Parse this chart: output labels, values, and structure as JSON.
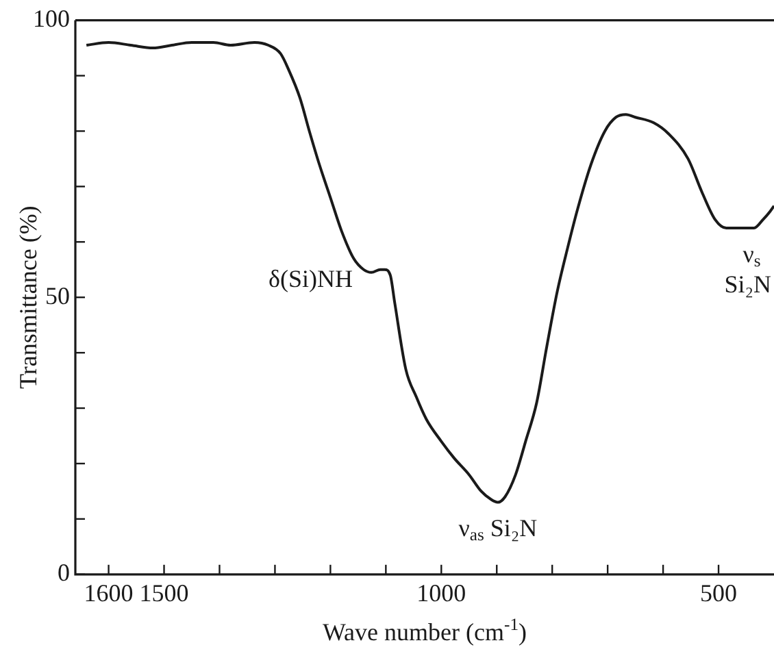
{
  "chart_data": {
    "type": "line",
    "xlabel": "Wave number (cm$^{-1}$)",
    "ylabel": "Transmittance (%)",
    "xlim": [
      1660,
      400
    ],
    "ylim": [
      0,
      100
    ],
    "xticks": [
      1600,
      1500,
      {
        "value": 1400,
        "label": null
      },
      {
        "value": 1300,
        "label": null
      },
      {
        "value": 1200,
        "label": null
      },
      {
        "value": 1100,
        "label": null
      },
      1000,
      {
        "value": 900,
        "label": null
      },
      {
        "value": 800,
        "label": null
      },
      {
        "value": 700,
        "label": null
      },
      {
        "value": 600,
        "label": null
      },
      500
    ],
    "yticks": [
      0,
      {
        "value": 10,
        "label": null
      },
      {
        "value": 20,
        "label": null
      },
      {
        "value": 30,
        "label": null
      },
      {
        "value": 40,
        "label": null
      },
      50,
      {
        "value": 60,
        "label": null
      },
      {
        "value": 70,
        "label": null
      },
      {
        "value": 80,
        "label": null
      },
      {
        "value": 90,
        "label": null
      },
      100
    ],
    "grid": false,
    "legend": false,
    "marker": "none",
    "line_style": "solid",
    "series": [
      {
        "color": "#1a1a1a",
        "x": [
          1640,
          1600,
          1560,
          1520,
          1486,
          1450,
          1411,
          1380,
          1337,
          1312,
          1290,
          1275,
          1255,
          1238,
          1220,
          1200,
          1180,
          1158,
          1140,
          1126,
          1110,
          1102,
          1092,
          1084,
          1064,
          1045,
          1027,
          1000,
          977,
          950,
          928,
          910,
          898,
          885,
          866,
          848,
          828,
          810,
          791,
          772,
          754,
          730,
          705,
          685,
          667,
          650,
          617,
          590,
          555,
          530,
          506,
          486,
          468,
          450,
          436,
          420,
          407,
          400
        ],
        "values": [
          95.5,
          96,
          95.5,
          95,
          95.5,
          96,
          96,
          95.5,
          96,
          95.5,
          94,
          91,
          86,
          80,
          74,
          68,
          62,
          57,
          55,
          54.5,
          55,
          55,
          54,
          49,
          37,
          32,
          28,
          24,
          21,
          18,
          15,
          13.5,
          13,
          14,
          18,
          24,
          31,
          41,
          51,
          59,
          66,
          74,
          80,
          82.5,
          83,
          82.5,
          81.5,
          79.5,
          75,
          69,
          64,
          62.5,
          62.5,
          62.5,
          62.5,
          64,
          65.5,
          66.5
        ]
      }
    ],
    "annotations": [
      {
        "text": "δ(Si)NH",
        "x": 1130,
        "y": 55
      },
      {
        "text": "ν$_{as}$ Si₂N",
        "x": 898,
        "y": 13
      },
      {
        "text": "ν$_{s}$\nSi₂N",
        "x": 440,
        "y": 62.5
      }
    ]
  }
}
